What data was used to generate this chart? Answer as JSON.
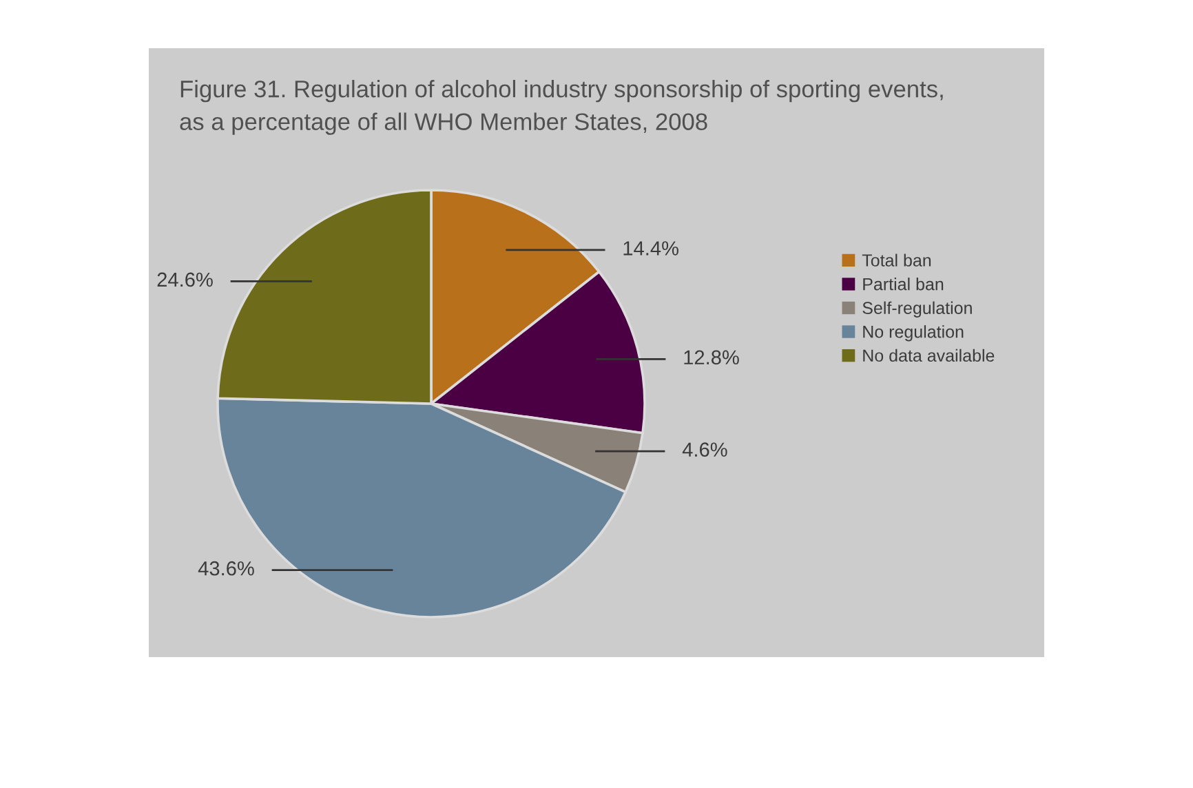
{
  "chart_data": {
    "type": "pie",
    "title": "Figure 31. Regulation of alcohol industry sponsorship of sporting events,\nas a percentage of all WHO Member States, 2008",
    "categories": [
      "Total ban",
      "Partial ban",
      "Self-regulation",
      "No regulation",
      "No data available"
    ],
    "values": [
      14.4,
      12.8,
      4.6,
      43.6,
      24.6
    ],
    "value_labels": [
      "14.4%",
      "12.8%",
      "4.6%",
      "43.6%",
      "24.6%"
    ],
    "colors": [
      "#b8701a",
      "#4a0042",
      "#8a8178",
      "#68849a",
      "#6e6c1a"
    ],
    "legend": "right"
  }
}
